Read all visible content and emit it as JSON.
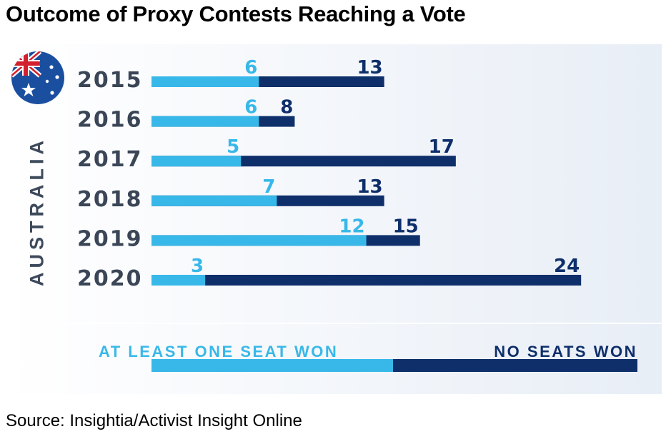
{
  "title": "Outcome of Proxy Contests Reaching a Vote",
  "source": "Source: Insightia/Activist Insight Online",
  "country_label": "AUSTRALIA",
  "colors": {
    "light": "#38b8e8",
    "dark": "#0f2f6b",
    "year_text": "#3a4556"
  },
  "flag_icon": "australian-flag-icon",
  "chart_data": {
    "type": "bar",
    "orientation": "horizontal",
    "stacked": true,
    "categories": [
      "2015",
      "2016",
      "2017",
      "2018",
      "2019",
      "2020"
    ],
    "series": [
      {
        "name": "AT LEAST ONE SEAT WON",
        "values": [
          6,
          6,
          5,
          7,
          12,
          3
        ]
      },
      {
        "name": "NO SEATS WON",
        "values": [
          13,
          8,
          17,
          13,
          15,
          24
        ]
      }
    ],
    "xlim": [
      0,
      27
    ],
    "grid": false,
    "legend_position": "bottom"
  }
}
